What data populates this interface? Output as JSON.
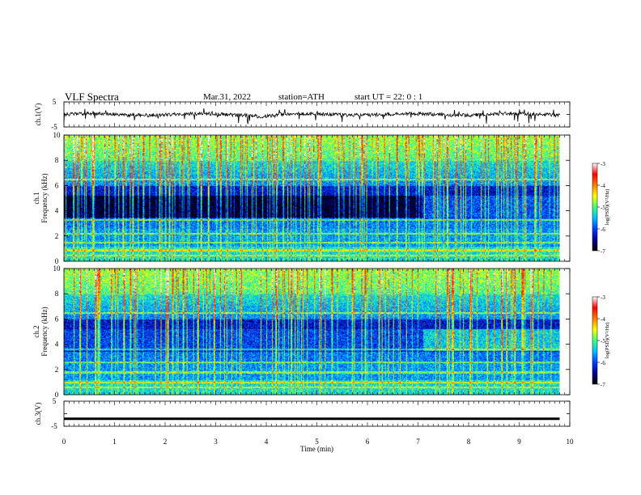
{
  "header": {
    "title": "VLF  Spectra",
    "date": "Mar.31, 2022",
    "station": "station=ATH",
    "start_ut": "start  UT  =    22: 0   : 1"
  },
  "chart_data": [
    {
      "type": "line",
      "panel": "ch1-waveform",
      "ylabel": "ch.1(V)",
      "ylim": [
        -5,
        5
      ],
      "ytick_labels": [
        "5",
        "-5"
      ],
      "x_range_min": [
        0,
        9.8
      ],
      "trace": "noisy waveform centred near 0 V with sharp negative spikes",
      "color": "#000000"
    },
    {
      "type": "heatmap",
      "panel": "ch1-spectrogram",
      "ylabel": "ch.1\nFrequency  (kHz)",
      "ylim": [
        0,
        10
      ],
      "ytick_labels": [
        "0",
        "2",
        "4",
        "6",
        "8",
        "10"
      ],
      "x_range_min": [
        0,
        9.8
      ],
      "colorbar": {
        "label": "log(PSD)(V²/Hz)",
        "range": [
          -7,
          -3
        ],
        "tick_labels": [
          "-3",
          "-4",
          "-5",
          "-6",
          "-7"
        ],
        "colormap": [
          "#000000",
          "#00008f",
          "#0040ff",
          "#00c0ff",
          "#40ff80",
          "#ffff00",
          "#ff8000",
          "#ff0000",
          "#ffffff"
        ]
      },
      "features": "broadband impulsive sferics; quiet 3.5–5 kHz band before ~7.1 min; strong bands near 0.5, 1.5, 2.2 kHz"
    },
    {
      "type": "heatmap",
      "panel": "ch2-spectrogram",
      "ylabel": "ch.2\nFrequency  (kHz)",
      "ylim": [
        0,
        10
      ],
      "ytick_labels": [
        "0",
        "2",
        "4",
        "6",
        "8",
        "10"
      ],
      "x_range_min": [
        0,
        9.8
      ],
      "colorbar": {
        "label": "log(PSD)(V²/Hz)",
        "range": [
          -7,
          -3
        ],
        "tick_labels": [
          "-3",
          "-4",
          "-5",
          "-6",
          "-7"
        ]
      },
      "features": "broadband sferics; raised 3.5–5 kHz band after ~7.1 min; strong bands near 0.5, 1, 1.8 kHz"
    },
    {
      "type": "line",
      "panel": "ch3-waveform",
      "ylabel": "ch.3(V)",
      "ylim": [
        -5,
        5
      ],
      "ytick_labels": [
        "5",
        "-5"
      ],
      "x_range_min": [
        0,
        9.8
      ],
      "constant_value": -2,
      "color": "#000000"
    }
  ],
  "x_axis": {
    "label": "Time  (min)",
    "range": [
      0,
      10
    ],
    "tick_labels": [
      "0",
      "1",
      "2",
      "3",
      "4",
      "5",
      "6",
      "7",
      "8",
      "9",
      "10"
    ]
  }
}
